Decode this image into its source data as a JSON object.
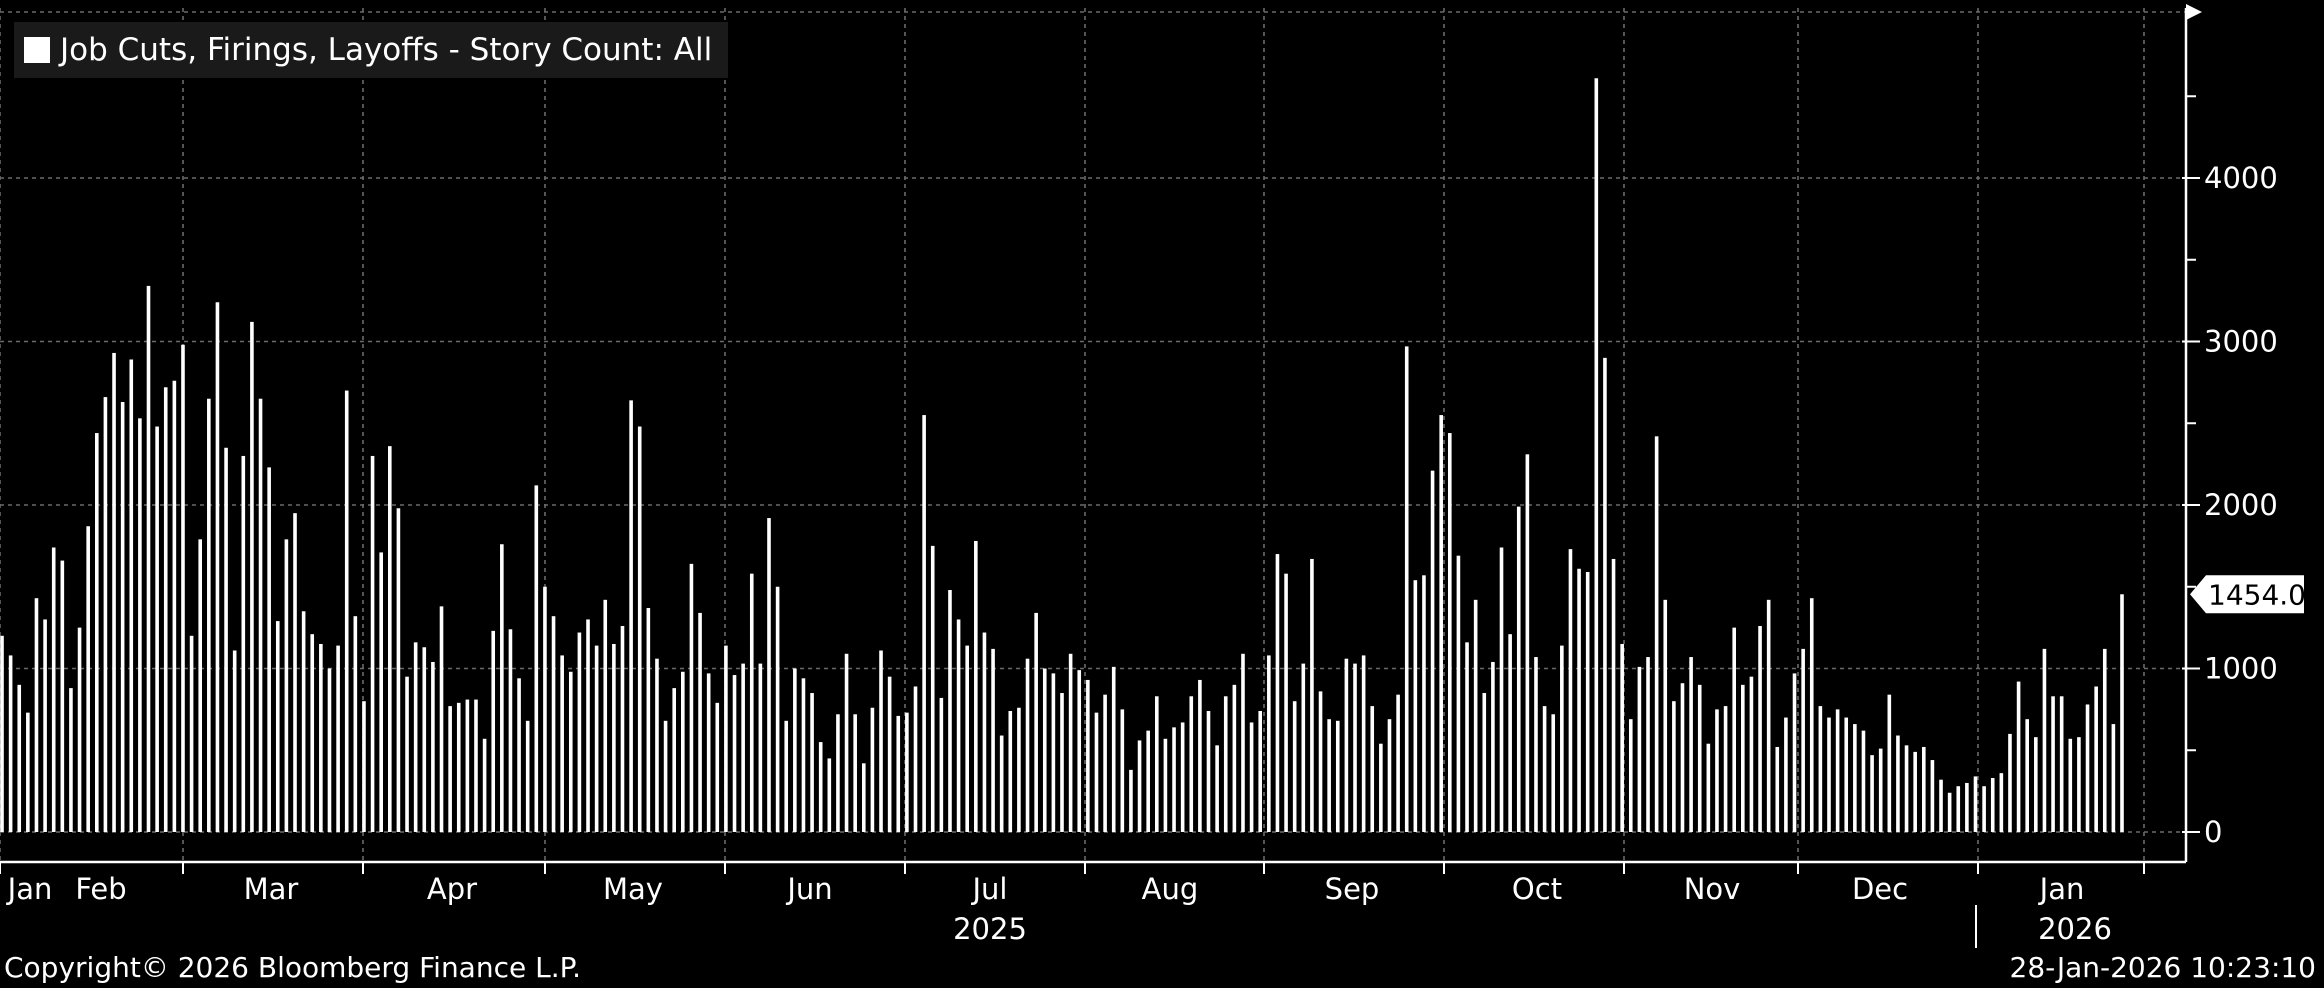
{
  "chart_data": {
    "type": "bar",
    "legend": "Job Cuts, Firings, Layoffs - Story Count: All",
    "ylim": [
      0,
      5000
    ],
    "yticks": [
      0,
      1000,
      2000,
      3000,
      4000
    ],
    "last_value_label": "1454.00",
    "last_value": 1454,
    "x_month_labels": [
      "Jan",
      "Feb",
      "Mar",
      "Apr",
      "May",
      "Jun",
      "Jul",
      "Aug",
      "Sep",
      "Oct",
      "Nov",
      "Dec",
      "Jan"
    ],
    "x_year_labels": [
      "2025",
      "2026"
    ],
    "grid": true,
    "legend_position": "top-left",
    "values": [
      1200,
      1080,
      900,
      730,
      1430,
      1300,
      1740,
      1660,
      880,
      1250,
      1870,
      2440,
      2660,
      2930,
      2630,
      2890,
      2530,
      3340,
      2480,
      2720,
      2760,
      2980,
      1200,
      1790,
      2650,
      3240,
      2350,
      1110,
      2300,
      3120,
      2650,
      2230,
      1290,
      1790,
      1950,
      1350,
      1210,
      1150,
      1000,
      1140,
      2700,
      1320,
      800,
      2300,
      1710,
      2360,
      1980,
      950,
      1160,
      1130,
      1040,
      1380,
      770,
      790,
      810,
      810,
      570,
      1230,
      1760,
      1240,
      940,
      680,
      2120,
      1500,
      1320,
      1080,
      980,
      1220,
      1300,
      1140,
      1420,
      1150,
      1260,
      2640,
      2480,
      1370,
      1060,
      680,
      880,
      980,
      1640,
      1340,
      970,
      790,
      1140,
      960,
      1030,
      1580,
      1030,
      1920,
      1500,
      680,
      1000,
      940,
      850,
      550,
      450,
      720,
      1090,
      720,
      420,
      760,
      1110,
      950,
      710,
      730,
      890,
      2550,
      1750,
      820,
      1480,
      1300,
      1140,
      1780,
      1220,
      1120,
      590,
      740,
      760,
      1060,
      1340,
      1000,
      970,
      850,
      1090,
      990,
      930,
      730,
      840,
      1010,
      750,
      380,
      560,
      620,
      830,
      570,
      640,
      670,
      830,
      930,
      740,
      530,
      830,
      900,
      1090,
      670,
      740,
      1080,
      1700,
      1580,
      800,
      1030,
      1670,
      860,
      690,
      680,
      1060,
      1030,
      1080,
      770,
      540,
      690,
      840,
      2970,
      1540,
      1570,
      2210,
      2550,
      2440,
      1690,
      1160,
      1420,
      850,
      1040,
      1740,
      1210,
      1990,
      2310,
      1070,
      770,
      720,
      1140,
      1730,
      1610,
      1590,
      4610,
      2900,
      1670,
      1150,
      690,
      1010,
      1070,
      2420,
      1420,
      800,
      910,
      1070,
      900,
      540,
      750,
      770,
      1250,
      900,
      950,
      1260,
      1420,
      520,
      700,
      970,
      1120,
      1430,
      770,
      700,
      750,
      700,
      660,
      620,
      470,
      510,
      840,
      590,
      530,
      490,
      520,
      440,
      320,
      240,
      280,
      300,
      340,
      280,
      330,
      360,
      600,
      920,
      690,
      580,
      1120,
      830,
      830,
      570,
      580,
      780,
      890,
      1120,
      660,
      1454
    ]
  },
  "footer": {
    "copyright": "Copyright© 2026 Bloomberg Finance L.P.",
    "timestamp": "28-Jan-2026 10:23:10"
  }
}
